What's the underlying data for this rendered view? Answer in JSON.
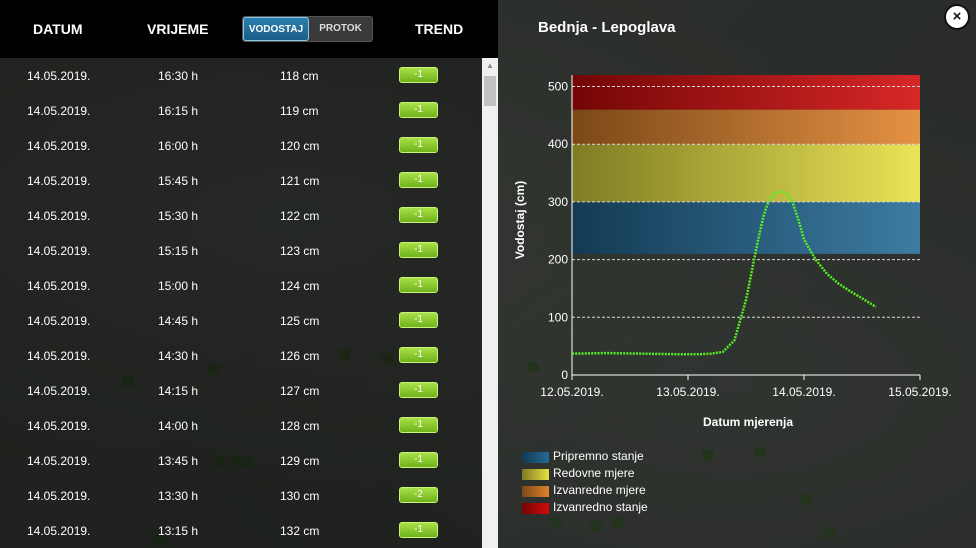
{
  "table": {
    "headers": {
      "datum": "DATUM",
      "vrijeme": "VRIJEME",
      "trend": "TREND"
    },
    "toggle": {
      "vodostaj": "VODOSTAJ",
      "protok": "PROTOK"
    },
    "rows": [
      {
        "date": "14.05.2019.",
        "time": "16:30 h",
        "level": "118 cm",
        "trend": "-1"
      },
      {
        "date": "14.05.2019.",
        "time": "16:15 h",
        "level": "119 cm",
        "trend": "-1"
      },
      {
        "date": "14.05.2019.",
        "time": "16:00 h",
        "level": "120 cm",
        "trend": "-1"
      },
      {
        "date": "14.05.2019.",
        "time": "15:45 h",
        "level": "121 cm",
        "trend": "-1"
      },
      {
        "date": "14.05.2019.",
        "time": "15:30 h",
        "level": "122 cm",
        "trend": "-1"
      },
      {
        "date": "14.05.2019.",
        "time": "15:15 h",
        "level": "123 cm",
        "trend": "-1"
      },
      {
        "date": "14.05.2019.",
        "time": "15:00 h",
        "level": "124 cm",
        "trend": "-1"
      },
      {
        "date": "14.05.2019.",
        "time": "14:45 h",
        "level": "125 cm",
        "trend": "-1"
      },
      {
        "date": "14.05.2019.",
        "time": "14:30 h",
        "level": "126 cm",
        "trend": "-1"
      },
      {
        "date": "14.05.2019.",
        "time": "14:15 h",
        "level": "127 cm",
        "trend": "-1"
      },
      {
        "date": "14.05.2019.",
        "time": "14:00 h",
        "level": "128 cm",
        "trend": "-1"
      },
      {
        "date": "14.05.2019.",
        "time": "13:45 h",
        "level": "129 cm",
        "trend": "-1"
      },
      {
        "date": "14.05.2019.",
        "time": "13:30 h",
        "level": "130 cm",
        "trend": "-2"
      },
      {
        "date": "14.05.2019.",
        "time": "13:15 h",
        "level": "132 cm",
        "trend": "-1"
      }
    ]
  },
  "close_label": "×",
  "scroll_up_label": "▲",
  "colors": {
    "line": "#55ee22",
    "pripremno": "#236a96",
    "redovne": "#e6e040",
    "izvanredne": "#e0822a",
    "izvanredno": "#d20a0a"
  },
  "chart_data": {
    "type": "line",
    "title": "Bednja - Lepoglava",
    "xlabel": "Datum mjerenja",
    "ylabel": "Vodostaj (cm)",
    "ylim": [
      0,
      520
    ],
    "yticks": [
      0,
      100,
      200,
      300,
      400,
      500
    ],
    "ytick_labels": [
      "0",
      "100",
      "200",
      "300",
      "400",
      "500"
    ],
    "xlim": [
      "12.05.2019.",
      "15.05.2019."
    ],
    "xticks": [
      "12.05.2019.",
      "13.05.2019.",
      "14.05.2019.",
      "15.05.2019."
    ],
    "grid": "horizontal",
    "bands": [
      {
        "name": "Pripremno stanje",
        "from": 210,
        "to": 300,
        "color": "#236a96"
      },
      {
        "name": "Redovne mjere",
        "from": 300,
        "to": 400,
        "color": "#e6e040"
      },
      {
        "name": "Izvanredne mjere",
        "from": 400,
        "to": 460,
        "color": "#e0822a"
      },
      {
        "name": "Izvanredno stanje",
        "from": 460,
        "to": 520,
        "color": "#d20a0a"
      }
    ],
    "series": [
      {
        "x_days": [
          0.0,
          0.3,
          0.6,
          0.9,
          1.1,
          1.2,
          1.3,
          1.4,
          1.5,
          1.6,
          1.65,
          1.7,
          1.75,
          1.8,
          1.85,
          1.9,
          1.95,
          2.0,
          2.1,
          2.2,
          2.3,
          2.4,
          2.5,
          2.62
        ],
        "values": [
          37,
          38,
          37,
          36,
          36,
          37,
          40,
          60,
          130,
          230,
          275,
          305,
          315,
          318,
          315,
          300,
          270,
          235,
          200,
          175,
          158,
          145,
          133,
          118
        ]
      }
    ],
    "legend": [
      "Pripremno stanje",
      "Redovne mjere",
      "Izvanredne mjere",
      "Izvanredno stanje"
    ],
    "legend_position": "bottom-left"
  }
}
